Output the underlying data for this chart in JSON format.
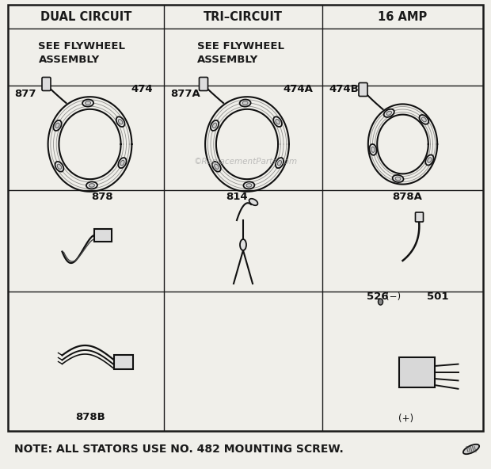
{
  "bg_color": "#f0efea",
  "grid_color": "#1a1a1a",
  "col_headers": [
    "DUAL CIRCUIT",
    "TRI–CIRCUIT",
    "16 AMP"
  ],
  "row1_col1": "SEE FLYWHEEL\nASSEMBLY",
  "row1_col2": "SEE FLYWHEEL\nASSEMBLY",
  "note": "NOTE: ALL STATORS USE NO. 482 MOUNTING SCREW.",
  "watermark": "©ReplacementParts.com",
  "title_fontsize": 10.5,
  "label_fontsize": 9.5
}
